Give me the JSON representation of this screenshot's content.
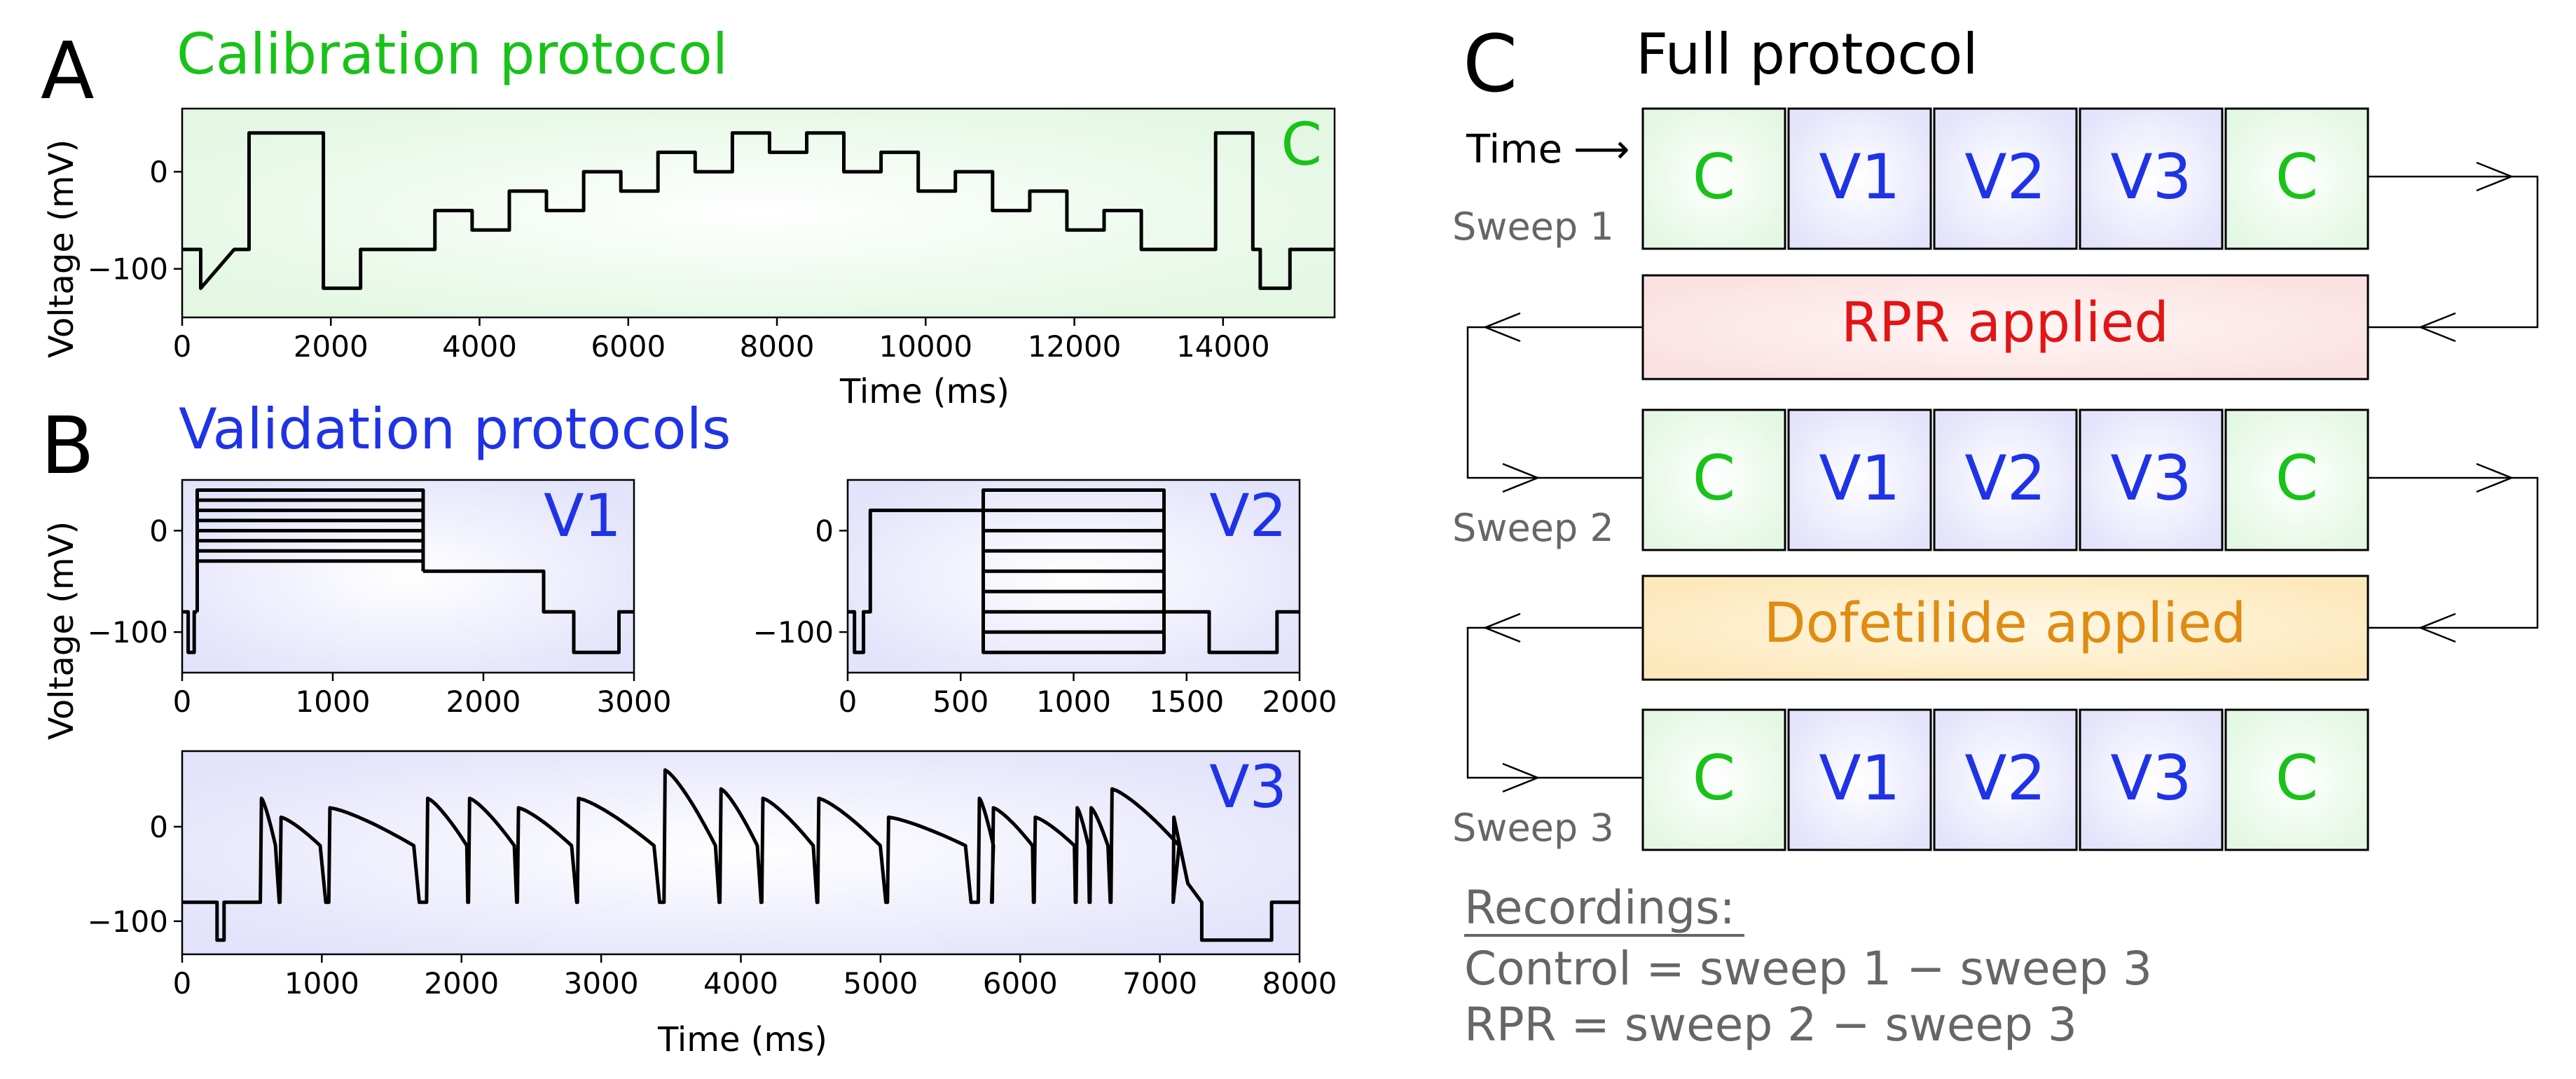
{
  "colors": {
    "calibration": "#19c219",
    "validation": "#1f33e6",
    "rpr": "#e11515",
    "dofetilide": "#e08c12",
    "gray_text": "#666666",
    "trace": "#000000"
  },
  "panel_a": {
    "letter": "A",
    "title": "Calibration protocol",
    "tag": "C",
    "chart_data": {
      "type": "line",
      "name": "calibration",
      "xlabel": "Time (ms)",
      "ylabel": "Voltage (mV)",
      "xlim": [
        0,
        15500
      ],
      "ylim": [
        -150,
        65
      ],
      "xticks": [
        0,
        2000,
        4000,
        6000,
        8000,
        10000,
        12000,
        14000
      ],
      "yticks": [
        0,
        -100
      ],
      "x": [
        0,
        250,
        250,
        700,
        900,
        900,
        1900,
        1900,
        2400,
        2400,
        3400,
        3400,
        3900,
        3900,
        4400,
        4400,
        4900,
        4900,
        5400,
        5400,
        5900,
        5900,
        6400,
        6400,
        6900,
        6900,
        7400,
        7400,
        7900,
        7900,
        8400,
        8400,
        8900,
        8900,
        9400,
        9400,
        9900,
        9900,
        10400,
        10400,
        10900,
        10900,
        11400,
        11400,
        11900,
        11900,
        12400,
        12400,
        12900,
        12900,
        13900,
        13900,
        14100,
        14400,
        14400,
        14500,
        14500,
        14900,
        14900,
        15500
      ],
      "y": [
        -80,
        -80,
        -120,
        -80,
        -80,
        40,
        40,
        -120,
        -120,
        -80,
        -80,
        -40,
        -40,
        -60,
        -60,
        -20,
        -20,
        -40,
        -40,
        0,
        0,
        -20,
        -20,
        20,
        20,
        0,
        0,
        40,
        40,
        20,
        20,
        40,
        40,
        0,
        0,
        20,
        20,
        -20,
        -20,
        0,
        0,
        -40,
        -40,
        -20,
        -20,
        -60,
        -60,
        -40,
        -40,
        -80,
        -80,
        40,
        40,
        40,
        -80,
        -80,
        -120,
        -120,
        -80,
        -80
      ]
    }
  },
  "panel_b": {
    "letter": "B",
    "title": "Validation protocols",
    "ylabel": "Voltage (mV)",
    "v1": {
      "tag": "V1",
      "chart_data": {
        "type": "line",
        "xlim": [
          0,
          3000
        ],
        "ylim": [
          -140,
          50
        ],
        "xticks": [
          0,
          1000,
          2000,
          3000
        ],
        "yticks": [
          0,
          -100
        ],
        "base_x": [
          0,
          40,
          40,
          80,
          80,
          100
        ],
        "base_y": [
          -80,
          -80,
          -120,
          -120,
          -80,
          -80
        ],
        "step_start": 100,
        "step_end": 1600,
        "step_levels": [
          40,
          30,
          20,
          10,
          0,
          -10,
          -20,
          -30
        ],
        "tail_x": [
          1600,
          2400,
          2400,
          2600,
          2600,
          2900,
          2900,
          3000
        ],
        "tail_y": [
          -40,
          -40,
          -80,
          -80,
          -120,
          -120,
          -80,
          -80
        ]
      }
    },
    "v2": {
      "tag": "V2",
      "chart_data": {
        "type": "line",
        "xlim": [
          0,
          2000
        ],
        "ylim": [
          -140,
          50
        ],
        "xticks": [
          0,
          500,
          1000,
          1500,
          2000
        ],
        "yticks": [
          0,
          -100
        ],
        "base_x": [
          0,
          30,
          30,
          70,
          70,
          100,
          100,
          600
        ],
        "base_y": [
          -80,
          -80,
          -120,
          -120,
          -80,
          -80,
          20,
          20
        ],
        "step_start": 600,
        "step_end": 1400,
        "step_levels": [
          40,
          20,
          0,
          -20,
          -40,
          -60,
          -80,
          -100,
          -120
        ],
        "tail_x": [
          1400,
          1600,
          1600,
          1900,
          1900,
          2000
        ],
        "tail_y": [
          -80,
          -80,
          -120,
          -120,
          -80,
          -80
        ]
      }
    },
    "v3": {
      "tag": "V3",
      "chart_data": {
        "type": "line",
        "xlabel": "Time (ms)",
        "xlim": [
          0,
          8000
        ],
        "ylim": [
          -135,
          80
        ],
        "xticks": [
          0,
          1000,
          2000,
          3000,
          4000,
          5000,
          6000,
          7000,
          8000
        ],
        "yticks": [
          0,
          -100
        ],
        "pre_x": [
          0,
          250,
          250,
          300,
          300,
          550
        ],
        "pre_y": [
          -80,
          -80,
          -120,
          -120,
          -80,
          -80
        ],
        "ap_starts": [
          560,
          700,
          1050,
          1750,
          2050,
          2400,
          2830,
          3450,
          3850,
          4150,
          4550,
          5050,
          5700,
          5800,
          6100,
          6400,
          6500,
          6650
        ],
        "ap_peaks": [
          30,
          10,
          20,
          30,
          30,
          20,
          30,
          60,
          40,
          30,
          30,
          10,
          30,
          20,
          10,
          20,
          20,
          40
        ],
        "ap_durations": [
          100,
          280,
          600,
          280,
          320,
          380,
          540,
          360,
          260,
          360,
          440,
          550,
          100,
          280,
          280,
          80,
          120,
          480
        ],
        "post_x": [
          7100,
          7200,
          7300,
          7300,
          7800,
          7800,
          8000
        ],
        "post_y": [
          10,
          -60,
          -80,
          -120,
          -120,
          -80,
          -80
        ]
      }
    }
  },
  "panel_c": {
    "letter": "C",
    "title": "Full protocol",
    "time_label": "Time",
    "time_arrow": "⟶",
    "cells": [
      "C",
      "V1",
      "V2",
      "V3",
      "C"
    ],
    "sweep_labels": [
      "Sweep 1",
      "Sweep 2",
      "Sweep 3"
    ],
    "rpr_bar": "RPR applied",
    "dofetilide_bar": "Dofetilide applied",
    "recordings_title": "Recordings:",
    "recordings_lines": [
      "Control = sweep 1 − sweep 3",
      "RPR = sweep 2 − sweep 3"
    ]
  }
}
